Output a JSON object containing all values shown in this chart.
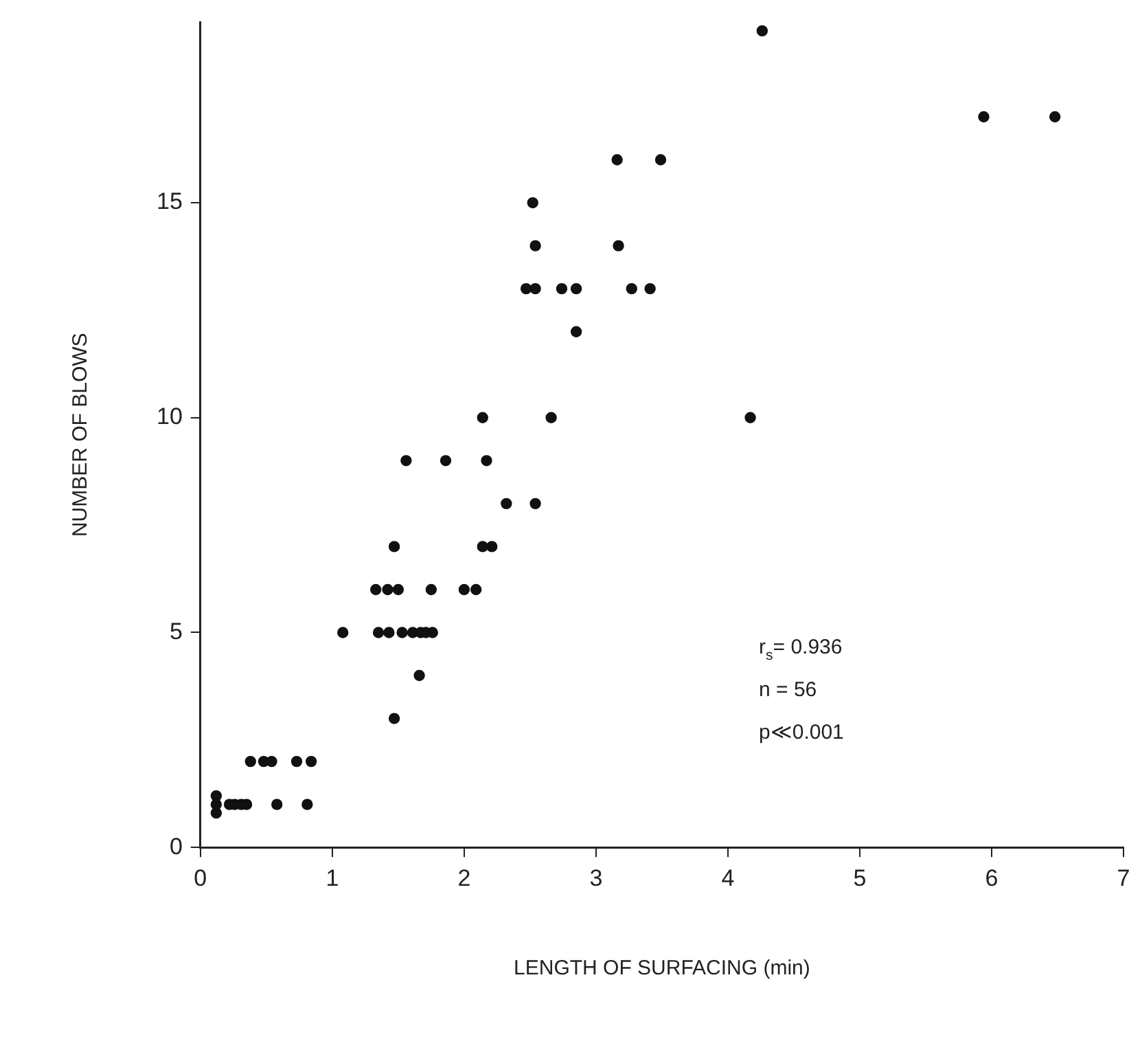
{
  "chart_data": {
    "type": "scatter",
    "xlabel": "LENGTH OF SURFACING (min)",
    "ylabel": "NUMBER OF BLOWS",
    "xlim": [
      0,
      7
    ],
    "xticks": [
      0,
      1,
      2,
      3,
      4,
      5,
      6,
      7
    ],
    "ylim": [
      0,
      19.2
    ],
    "yticks": [
      0,
      5,
      10,
      15
    ],
    "grid": false,
    "legend": false,
    "marker": "circle",
    "annotations": [
      "r$_{s}$= 0.936",
      "n = 56",
      "p≪0.001"
    ],
    "series": [
      {
        "color": "#111111",
        "x": [
          0.12,
          0.12,
          0.12,
          0.22,
          0.26,
          0.31,
          0.35,
          0.58,
          0.81,
          0.38,
          0.48,
          0.54,
          0.73,
          0.84,
          1.08,
          1.35,
          1.43,
          1.53,
          1.61,
          1.67,
          1.71,
          1.76,
          1.33,
          1.42,
          1.5,
          1.75,
          2.0,
          2.09,
          1.47,
          2.14,
          2.21,
          1.66,
          1.47,
          2.32,
          2.54,
          1.56,
          1.86,
          2.17,
          2.14,
          2.66,
          4.17,
          2.85,
          2.47,
          2.54,
          2.74,
          2.85,
          3.27,
          3.41,
          2.54,
          3.17,
          2.52,
          3.16,
          3.49,
          5.94,
          6.48,
          4.26
        ],
        "values": [
          0.8,
          1,
          1.2,
          1,
          1,
          1,
          1,
          1,
          1,
          2,
          2,
          2,
          2,
          2,
          5,
          5,
          5,
          5,
          5,
          5,
          5,
          5,
          6,
          6,
          6,
          6,
          6,
          6,
          7,
          7,
          7,
          4,
          3,
          8,
          8,
          9,
          9,
          9,
          10,
          10,
          10,
          12,
          13,
          13,
          13,
          13,
          13,
          13,
          14,
          14,
          15,
          16,
          16,
          17,
          17,
          19
        ]
      }
    ]
  }
}
